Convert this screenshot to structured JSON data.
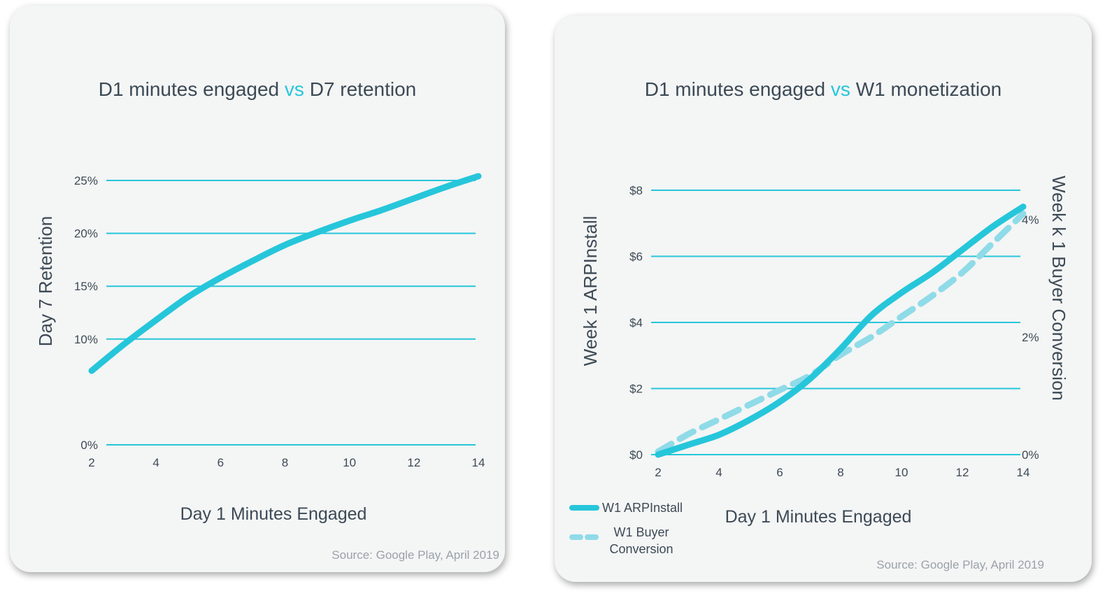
{
  "chart_data": [
    {
      "type": "line",
      "title": {
        "part1": "D1 minutes engaged",
        "vs": "vs",
        "part2": "D7 retention"
      },
      "xlabel": "Day 1 Minutes Engaged",
      "ylabel": "Day 7 Retention",
      "x_ticks": [
        "2",
        "4",
        "6",
        "8",
        "10",
        "12",
        "14"
      ],
      "y_ticks": [
        "0%",
        "10%",
        "15%",
        "20%",
        "25%"
      ],
      "xlim": [
        2,
        14
      ],
      "ylim": [
        0,
        25
      ],
      "grid": true,
      "series": [
        {
          "name": "D7 retention",
          "color": "#26c6da",
          "style": "solid",
          "x": [
            2,
            3,
            4,
            5,
            6,
            7,
            8,
            9,
            10,
            11,
            12,
            13,
            14
          ],
          "y": [
            7.0,
            9.5,
            11.8,
            14.0,
            15.8,
            17.4,
            18.9,
            20.1,
            21.2,
            22.2,
            23.3,
            24.4,
            25.4
          ]
        }
      ],
      "source": "Source: Google Play, April 2019"
    },
    {
      "type": "line",
      "title": {
        "part1": "D1 minutes engaged",
        "vs": "vs",
        "part2": "W1 monetization"
      },
      "xlabel": "Day 1 Minutes Engaged",
      "ylabel": "Week 1 ARPInstall",
      "y2label": "Week k 1 Buyer Conversion",
      "x_ticks": [
        "2",
        "4",
        "6",
        "8",
        "10",
        "12",
        "14"
      ],
      "y_ticks": [
        "$0",
        "$2",
        "$4",
        "$6",
        "$8"
      ],
      "y2_ticks": [
        "0%",
        "2%",
        "4%"
      ],
      "xlim": [
        2,
        14
      ],
      "ylim": [
        0,
        8
      ],
      "y2lim": [
        0,
        4.5
      ],
      "grid": true,
      "series": [
        {
          "name": "W1 ARPInstall",
          "axis": "left",
          "color": "#26c6da",
          "style": "solid",
          "x": [
            2,
            3,
            4,
            5,
            6,
            7,
            8,
            9,
            10,
            11,
            12,
            13,
            14
          ],
          "y": [
            0.0,
            0.3,
            0.6,
            1.05,
            1.6,
            2.3,
            3.2,
            4.2,
            4.9,
            5.5,
            6.2,
            6.9,
            7.5
          ]
        },
        {
          "name": "W1 Buyer Conversion",
          "axis": "right",
          "color": "#8fdbe8",
          "style": "dashed",
          "x": [
            2,
            3,
            4,
            5,
            6,
            7,
            8,
            9,
            10,
            11,
            12,
            13,
            14
          ],
          "y": [
            0.05,
            0.35,
            0.6,
            0.85,
            1.1,
            1.35,
            1.7,
            2.0,
            2.35,
            2.7,
            3.1,
            3.6,
            4.1
          ]
        }
      ],
      "legend": {
        "position": "bottom-left",
        "items": [
          {
            "label": "W1 ARPInstall",
            "style": "solid",
            "color": "#26c6da"
          },
          {
            "label": "W1 Buyer Conversion",
            "style": "dashed",
            "color": "#8fdbe8"
          }
        ]
      },
      "source": "Source: Google Play, April 2019"
    }
  ]
}
